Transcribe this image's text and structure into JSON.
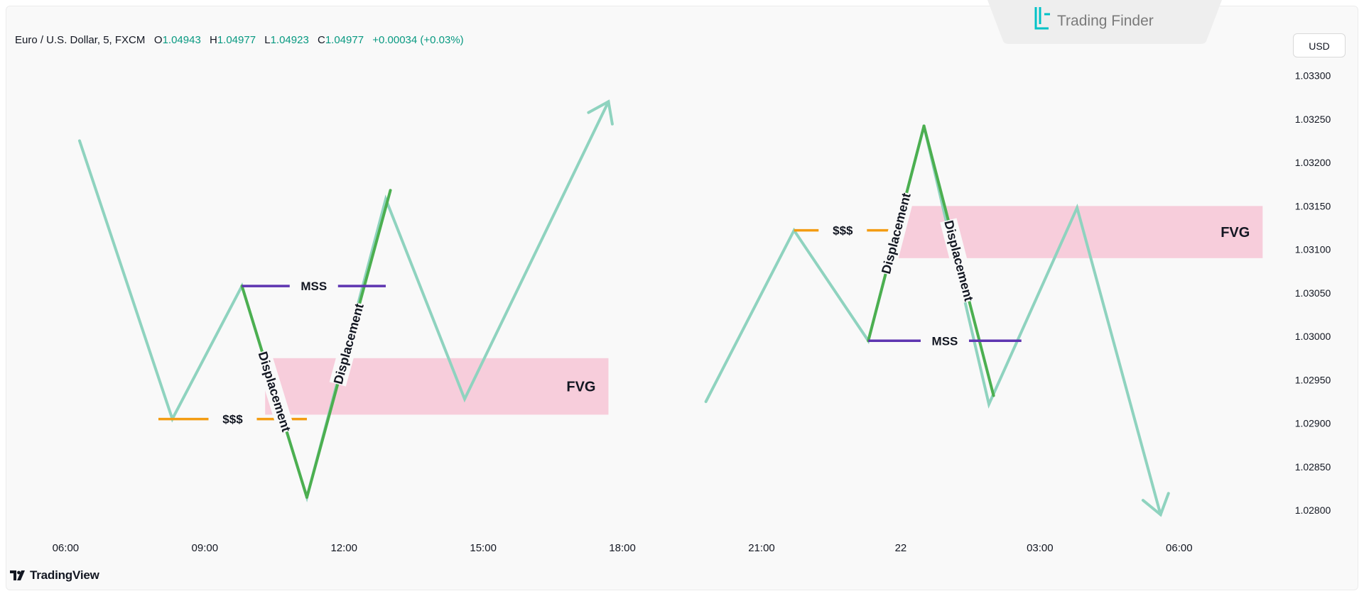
{
  "header": {
    "symbol": "Euro / U.S. Dollar, 5, FXCM",
    "open_label": "O",
    "open": "1.04943",
    "high_label": "H",
    "high": "1.04977",
    "low_label": "L",
    "low": "1.04923",
    "close_label": "C",
    "close": "1.04977",
    "change": "+0.00034 (+0.03%)"
  },
  "brand": {
    "name": "Trading Finder",
    "accent": "#00c2c7"
  },
  "currency": "USD",
  "footer": {
    "tradingview": "TradingView"
  },
  "colors": {
    "price_line": "#8fd3bf",
    "displacement": "#4caf50",
    "liquidity": "#f39c12",
    "mss": "#5e35b1",
    "fvg": "#f7c6d6",
    "axis_text": "#131722"
  },
  "chart_data": {
    "type": "line",
    "ylim": [
      1.0277,
      1.0332
    ],
    "y_ticks": [
      1.028,
      1.0285,
      1.029,
      1.0295,
      1.03,
      1.0305,
      1.031,
      1.0315,
      1.032,
      1.0325
    ],
    "y_tick_labels": [
      "1.02800",
      "1.02850",
      "1.02900",
      "1.02950",
      "1.03000",
      "1.03050",
      "1.03100",
      "1.03150",
      "1.03200",
      "1.03250"
    ],
    "y_top_partial_label": "1.03300",
    "x_ticks": [
      {
        "label": "06:00",
        "h": 6
      },
      {
        "label": "09:00",
        "h": 9
      },
      {
        "label": "12:00",
        "h": 12
      },
      {
        "label": "15:00",
        "h": 15
      },
      {
        "label": "18:00",
        "h": 18
      },
      {
        "label": "21:00",
        "h": 21
      },
      {
        "label": "22",
        "h": 24
      },
      {
        "label": "03:00",
        "h": 27
      },
      {
        "label": "06:00",
        "h": 30
      }
    ],
    "xlim": [
      4.8,
      32.3
    ],
    "series": [
      {
        "points": [
          [
            6.3,
            1.03225
          ],
          [
            8.3,
            1.02905
          ],
          [
            9.8,
            1.03058
          ],
          [
            11.2,
            1.02815
          ],
          [
            12.9,
            1.03158
          ],
          [
            14.6,
            1.02928
          ],
          [
            17.7,
            1.0327
          ]
        ],
        "arrow": "end"
      },
      {
        "points": [
          [
            19.8,
            1.02925
          ],
          [
            21.7,
            1.03122
          ],
          [
            23.3,
            1.02995
          ],
          [
            24.5,
            1.03242
          ],
          [
            25.9,
            1.02922
          ],
          [
            27.8,
            1.03148
          ],
          [
            29.6,
            1.02795
          ]
        ],
        "arrow": "end"
      }
    ],
    "displacement_segments": [
      {
        "from": [
          9.8,
          1.03058
        ],
        "to": [
          11.2,
          1.02815
        ],
        "label": "Displacement"
      },
      {
        "from": [
          11.2,
          1.02815
        ],
        "to": [
          13.0,
          1.03168
        ],
        "label": "Displacement"
      },
      {
        "from": [
          23.3,
          1.02995
        ],
        "to": [
          24.5,
          1.03242
        ],
        "label": "Displacement"
      },
      {
        "from": [
          24.5,
          1.03242
        ],
        "to": [
          26.0,
          1.02932
        ],
        "label": "Displacement"
      }
    ],
    "liquidity_levels": [
      {
        "y": 1.02905,
        "x_start": 8.0,
        "x_end": 11.2,
        "label": "$$$"
      },
      {
        "y": 1.03122,
        "x_start": 21.7,
        "x_end": 23.8,
        "label": "$$$"
      }
    ],
    "mss_levels": [
      {
        "y": 1.03058,
        "x_start": 9.8,
        "x_end": 12.9,
        "label": "MSS"
      },
      {
        "y": 1.02995,
        "x_start": 23.3,
        "x_end": 26.6,
        "label": "MSS"
      }
    ],
    "fvg_zones": [
      {
        "y_low": 1.0291,
        "y_high": 1.02975,
        "x_start": 10.3,
        "x_end": 17.7,
        "label": "FVG"
      },
      {
        "y_low": 1.0309,
        "y_high": 1.0315,
        "x_start": 23.9,
        "x_end": 31.8,
        "label": "FVG"
      }
    ]
  }
}
